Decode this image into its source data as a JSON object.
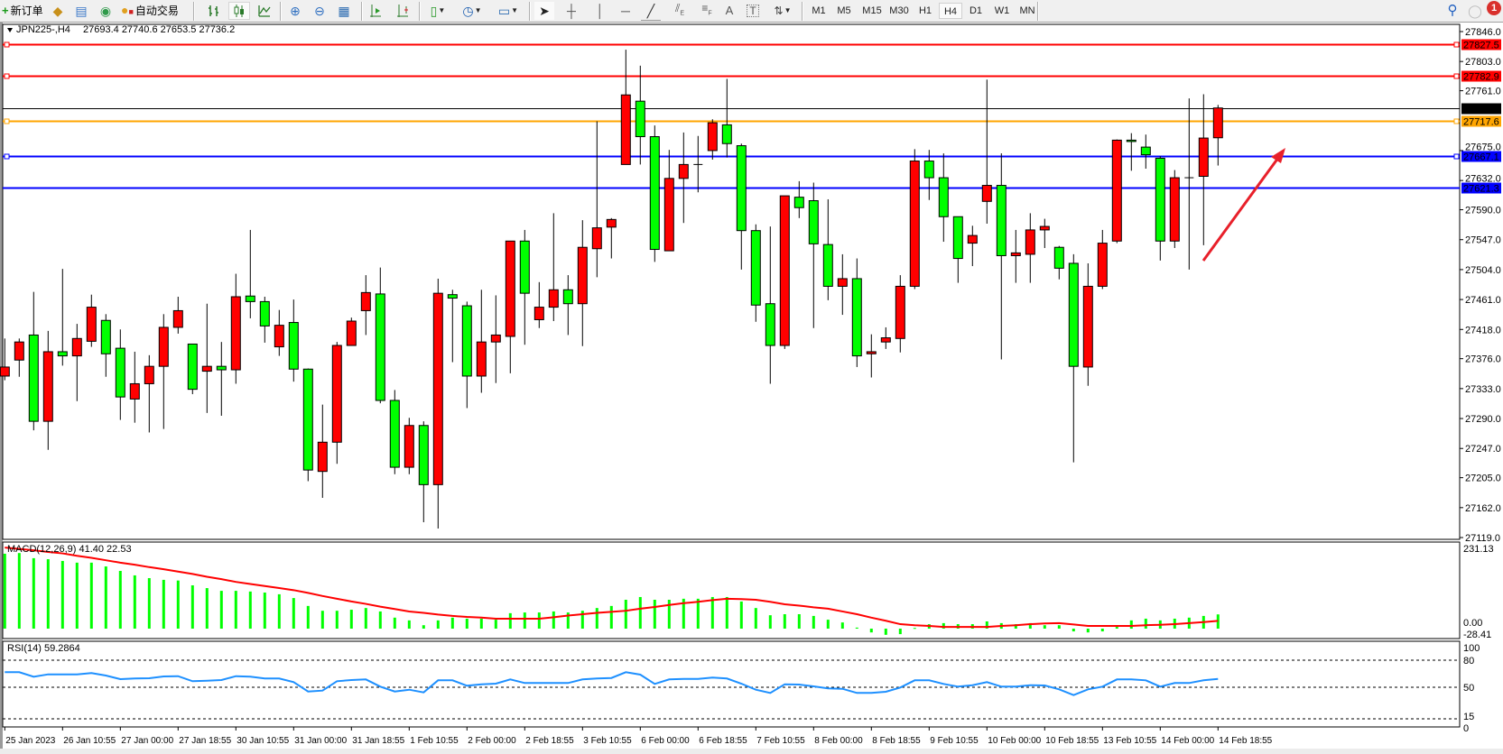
{
  "toolbar": {
    "new_order": "新订单",
    "auto_trading": "自动交易",
    "timeframes": [
      "M1",
      "M5",
      "M15",
      "M30",
      "H1",
      "H4",
      "D1",
      "W1",
      "MN"
    ],
    "active_timeframe": "H4",
    "notification_count": "1",
    "icons": [
      "new-order-icon",
      "gold-icon",
      "signals-icon",
      "radio-icon",
      "auto-trading-icon",
      "bar-chart-icon",
      "candlestick-chart-icon",
      "line-chart-icon",
      "zoom-in-icon",
      "zoom-out-icon",
      "tile-windows-icon",
      "auto-scroll-icon",
      "chart-shift-icon",
      "indicators-icon",
      "periods-icon",
      "templates-icon",
      "cursor-icon",
      "crosshair-icon",
      "vertical-line-icon",
      "horizontal-line-icon",
      "trendline-icon",
      "fibonacci-channel-icon",
      "fibonacci-retracement-icon",
      "text-icon",
      "text-label-icon",
      "arrows-icon",
      "search-icon",
      "notification-icon"
    ]
  },
  "chart": {
    "symbol": "JPN225-,H4",
    "ohlc": "27693.4 27740.6 27653.5 27736.2",
    "colors": {
      "bull": "#FF0000",
      "bear": "#00FF00",
      "outline": "#000000",
      "macd_hist": "#00FF00",
      "macd_signal": "#FF0000",
      "rsi": "#1E90FF"
    },
    "price_axis": [
      "27846.0",
      "27803.0",
      "27761.0",
      "27675.0",
      "27632.0",
      "27590.0",
      "27547.0",
      "27504.0",
      "27461.0",
      "27418.0",
      "27376.0",
      "27333.0",
      "27290.0",
      "27247.0",
      "27205.0",
      "27162.0",
      "27119.0"
    ],
    "levels": [
      {
        "price": "27827.5",
        "color": "#FF0000"
      },
      {
        "price": "27782.9",
        "color": "#FF0000"
      },
      {
        "price": "27736.2",
        "color": "#000000"
      },
      {
        "price": "27717.6",
        "color": "#FFA500"
      },
      {
        "price": "27667.1",
        "color": "#0000FF"
      },
      {
        "price": "27621.3",
        "color": "#0000FF"
      }
    ],
    "time_labels": [
      "25 Jan 2023",
      "26 Jan 10:55",
      "27 Jan 00:00",
      "27 Jan 18:55",
      "30 Jan 10:55",
      "31 Jan 00:00",
      "31 Jan 18:55",
      "1 Feb 10:55",
      "2 Feb 00:00",
      "2 Feb 18:55",
      "3 Feb 10:55",
      "6 Feb 00:00",
      "6 Feb 18:55",
      "7 Feb 10:55",
      "8 Feb 00:00",
      "8 Feb 18:55",
      "9 Feb 10:55",
      "10 Feb 00:00",
      "10 Feb 18:55",
      "13 Feb 10:55",
      "14 Feb 00:00",
      "14 Feb 18:55"
    ]
  },
  "chart_data": [
    {
      "type": "candlestick",
      "ylim": [
        27119,
        27846
      ],
      "ohlc_order": [
        "open",
        "high",
        "low",
        "close"
      ],
      "candles": [
        [
          27351,
          27405,
          27345,
          27364
        ],
        [
          27374,
          27405,
          27350,
          27400
        ],
        [
          27410,
          27472,
          27273,
          27286
        ],
        [
          27286,
          27416,
          27245,
          27386
        ],
        [
          27386,
          27505,
          27366,
          27380
        ],
        [
          27380,
          27426,
          27315,
          27405
        ],
        [
          27401,
          27468,
          27393,
          27450
        ],
        [
          27431,
          27440,
          27350,
          27383
        ],
        [
          27391,
          27418,
          27288,
          27321
        ],
        [
          27318,
          27386,
          27284,
          27340
        ],
        [
          27340,
          27381,
          27270,
          27365
        ],
        [
          27365,
          27440,
          27275,
          27421
        ],
        [
          27421,
          27465,
          27412,
          27445
        ],
        [
          27397,
          27397,
          27325,
          27332
        ],
        [
          27358,
          27455,
          27298,
          27365
        ],
        [
          27365,
          27400,
          27294,
          27360
        ],
        [
          27360,
          27498,
          27340,
          27465
        ],
        [
          27466,
          27561,
          27434,
          27458
        ],
        [
          27458,
          27465,
          27399,
          27423
        ],
        [
          27393,
          27446,
          27380,
          27424
        ],
        [
          27428,
          27461,
          27343,
          27361
        ],
        [
          27361,
          27362,
          27200,
          27216
        ],
        [
          27214,
          27310,
          27176,
          27256
        ],
        [
          27256,
          27400,
          27225,
          27395
        ],
        [
          27395,
          27435,
          27395,
          27430
        ],
        [
          27445,
          27496,
          27410,
          27471
        ],
        [
          27469,
          27507,
          27312,
          27316
        ],
        [
          27316,
          27331,
          27210,
          27220
        ],
        [
          27220,
          27291,
          27210,
          27280
        ],
        [
          27280,
          27286,
          27141,
          27195
        ],
        [
          27195,
          27491,
          27132,
          27470
        ],
        [
          27468,
          27475,
          27371,
          27463
        ],
        [
          27452,
          27458,
          27305,
          27351
        ],
        [
          27351,
          27475,
          27327,
          27400
        ],
        [
          27400,
          27467,
          27341,
          27410
        ],
        [
          27408,
          27545,
          27355,
          27545
        ],
        [
          27545,
          27561,
          27396,
          27470
        ],
        [
          27432,
          27486,
          27420,
          27450
        ],
        [
          27450,
          27585,
          27430,
          27475
        ],
        [
          27475,
          27496,
          27410,
          27455
        ],
        [
          27455,
          27575,
          27394,
          27536
        ],
        [
          27534,
          27717,
          27493,
          27564
        ],
        [
          27565,
          27578,
          27520,
          27576
        ],
        [
          27655,
          27820,
          27655,
          27755
        ],
        [
          27746,
          27797,
          27655,
          27695
        ],
        [
          27695,
          27711,
          27515,
          27533
        ],
        [
          27531,
          27676,
          27531,
          27635
        ],
        [
          27635,
          27701,
          27571,
          27655
        ],
        [
          27655,
          27696,
          27615,
          27655
        ],
        [
          27675,
          27720,
          27662,
          27715
        ],
        [
          27712,
          27778,
          27665,
          27685
        ],
        [
          27682,
          27685,
          27504,
          27560
        ],
        [
          27560,
          27569,
          27429,
          27453
        ],
        [
          27455,
          27566,
          27340,
          27395
        ],
        [
          27395,
          27610,
          27390,
          27610
        ],
        [
          27608,
          27631,
          27578,
          27593
        ],
        [
          27603,
          27629,
          27420,
          27541
        ],
        [
          27540,
          27605,
          27460,
          27480
        ],
        [
          27480,
          27526,
          27439,
          27491
        ],
        [
          27491,
          27520,
          27364,
          27380
        ],
        [
          27383,
          27411,
          27349,
          27386
        ],
        [
          27400,
          27421,
          27390,
          27406
        ],
        [
          27405,
          27496,
          27385,
          27480
        ],
        [
          27480,
          27677,
          27476,
          27660
        ],
        [
          27660,
          27676,
          27604,
          27636
        ],
        [
          27636,
          27671,
          27544,
          27580
        ],
        [
          27580,
          27580,
          27485,
          27520
        ],
        [
          27542,
          27567,
          27509,
          27553
        ],
        [
          27602,
          27777,
          27570,
          27625
        ],
        [
          27625,
          27671,
          27375,
          27524
        ],
        [
          27524,
          27561,
          27485,
          27528
        ],
        [
          27526,
          27585,
          27485,
          27561
        ],
        [
          27561,
          27577,
          27535,
          27566
        ],
        [
          27536,
          27538,
          27490,
          27506
        ],
        [
          27513,
          27526,
          27227,
          27365
        ],
        [
          27364,
          27513,
          27337,
          27480
        ],
        [
          27480,
          27561,
          27476,
          27542
        ],
        [
          27545,
          27691,
          27542,
          27690
        ],
        [
          27690,
          27700,
          27646,
          27688
        ],
        [
          27680,
          27698,
          27649,
          27669
        ],
        [
          27664,
          27667,
          27517,
          27545
        ],
        [
          27545,
          27647,
          27535,
          27636
        ],
        [
          27636,
          27750,
          27504,
          27636
        ],
        [
          27638,
          27756,
          27539,
          27693
        ],
        [
          27693.4,
          27740.6,
          27653.5,
          27736.2
        ]
      ]
    },
    {
      "type": "bar",
      "title": "MACD(12,26,9) 41.40 22.53",
      "ylim": [
        -28.41,
        231.13
      ],
      "axis_labels": [
        "231.13",
        "0.00",
        "-28.41"
      ],
      "histogram": [
        218,
        220,
        205,
        202,
        197,
        192,
        192,
        181,
        168,
        155,
        147,
        142,
        140,
        126,
        118,
        110,
        110,
        108,
        105,
        100,
        89,
        66,
        52,
        52,
        55,
        60,
        50,
        32,
        24,
        10,
        24,
        32,
        29,
        29,
        26,
        45,
        47,
        47,
        50,
        47,
        52,
        60,
        66,
        84,
        92,
        84,
        84,
        87,
        87,
        92,
        92,
        79,
        60,
        39,
        42,
        42,
        37,
        26,
        18,
        3,
        -11,
        -18,
        -16,
        2,
        13,
        16,
        13,
        13,
        21,
        16,
        13,
        16,
        10,
        10,
        -8,
        -11,
        -8,
        5,
        24,
        29,
        24,
        29,
        32,
        37,
        41.4
      ],
      "signal": [
        236,
        232,
        228,
        223,
        219,
        212,
        206,
        199,
        192,
        186,
        179,
        173,
        166,
        159,
        151,
        144,
        136,
        130,
        124,
        118,
        112,
        104,
        95,
        87,
        79,
        72,
        64,
        57,
        50,
        46,
        41,
        37,
        34,
        32,
        29,
        29,
        29,
        29,
        33,
        38,
        42,
        46,
        49,
        52,
        58,
        63,
        69,
        74,
        78,
        83,
        87,
        86,
        84,
        78,
        71,
        67,
        62,
        58,
        50,
        42,
        32,
        23,
        13,
        10,
        8,
        5,
        5,
        5,
        5,
        8,
        10,
        13,
        15,
        16,
        12,
        8,
        8,
        8,
        8,
        10,
        11,
        13,
        16,
        19,
        22.53
      ]
    },
    {
      "type": "line",
      "title": "RSI(14) 59.2864",
      "ylim": [
        0,
        100
      ],
      "levels": [
        80,
        50,
        15
      ],
      "axis_labels": [
        "100",
        "80",
        "50",
        "15",
        "0"
      ],
      "values": [
        66.7,
        66.7,
        61.7,
        64.3,
        64.3,
        64.3,
        65.7,
        63,
        59,
        59.7,
        60,
        62,
        62.3,
        56.7,
        57.3,
        58,
        62.3,
        61.7,
        59.7,
        59.7,
        55.7,
        45.3,
        46.3,
        56.7,
        58,
        58.7,
        50.7,
        45.3,
        47.3,
        44.3,
        57.7,
        57.7,
        51.7,
        53.3,
        54,
        58.7,
        54.7,
        54.7,
        54.7,
        54.7,
        58.7,
        59.7,
        60.3,
        66.7,
        64,
        53.7,
        58.7,
        59.3,
        59.3,
        60.7,
        59.7,
        54,
        47.3,
        43.7,
        53.3,
        53,
        51,
        48.7,
        48.3,
        43.7,
        43.7,
        45,
        49.7,
        57.7,
        57.7,
        53.7,
        50.7,
        52.3,
        55.7,
        50.7,
        50.7,
        52.3,
        52,
        47.7,
        41.3,
        47.7,
        50.7,
        58.7,
        58.7,
        57.7,
        50.7,
        54.7,
        54.7,
        57.7,
        59.29
      ]
    }
  ]
}
